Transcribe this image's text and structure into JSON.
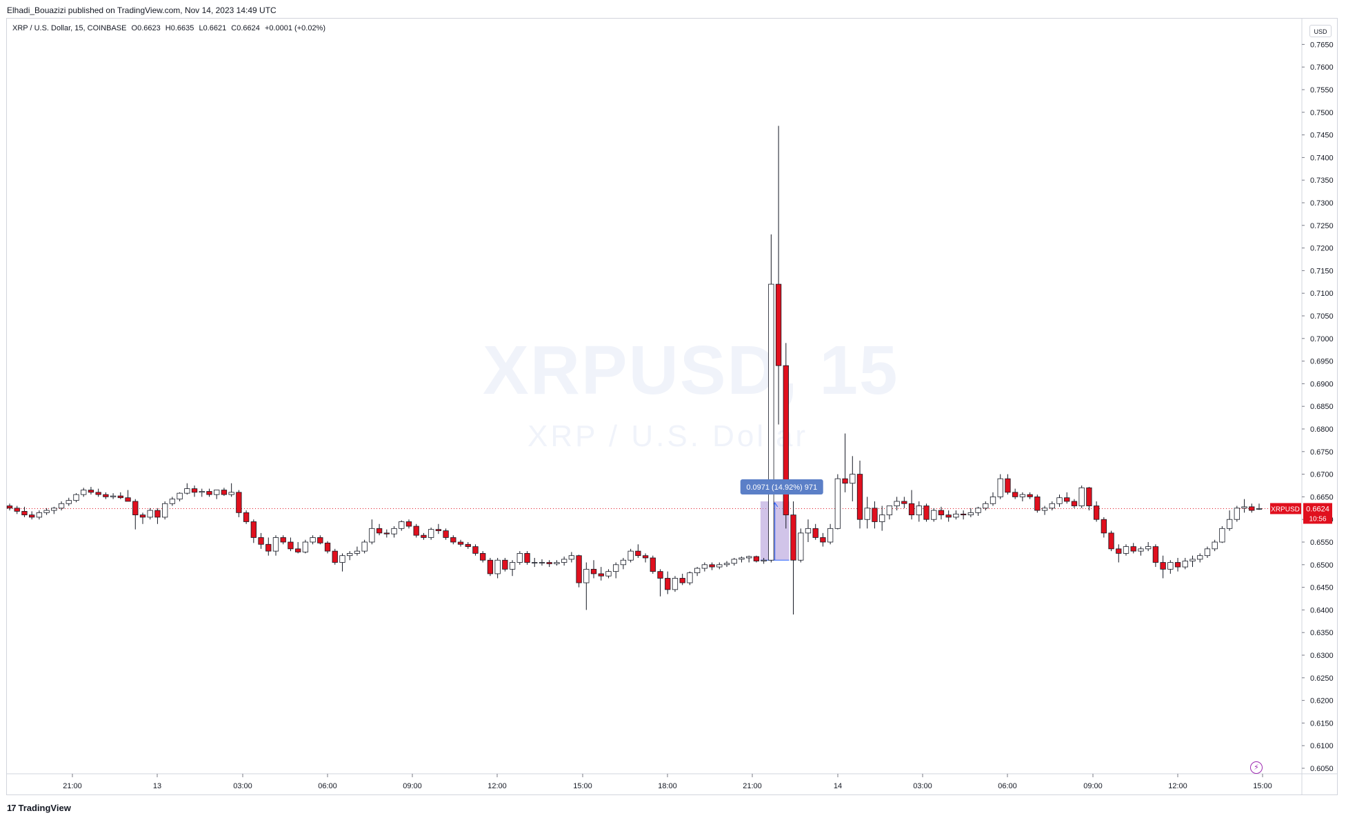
{
  "header": {
    "publisher_line": "Elhadi_Bouazizi published on TradingView.com, Nov 14, 2023 14:49 UTC"
  },
  "legend": {
    "symbol_desc": "XRP / U.S. Dollar, 15, COINBASE",
    "open": "O0.6623",
    "high": "H0.6635",
    "low": "L0.6621",
    "close": "C0.6624",
    "change": "+0.0001 (+0.02%)"
  },
  "watermark": {
    "main": "XRPUSD, 15",
    "sub": "XRP / U.S. Dollar"
  },
  "price_axis": {
    "currency": "USD"
  },
  "last_price": {
    "symbol": "XRPUSD",
    "value": "0.6624",
    "countdown": "10:56"
  },
  "measure_label": "0.0971 (14.92%) 971",
  "footer": {
    "brand": "TradingView"
  },
  "colors": {
    "up": "#ffffff",
    "down": "#e0101e",
    "wick": "#131722",
    "measure": "#b39ddb",
    "price_line": "#e0101e"
  },
  "chart_data": {
    "type": "candlestick",
    "title": "XRP / U.S. Dollar, 15, COINBASE",
    "y_ticks": [
      "0.7650",
      "0.7600",
      "0.7550",
      "0.7500",
      "0.7450",
      "0.7400",
      "0.7350",
      "0.7300",
      "0.7250",
      "0.7200",
      "0.7150",
      "0.7100",
      "0.7050",
      "0.7000",
      "0.6950",
      "0.6900",
      "0.6850",
      "0.6800",
      "0.6750",
      "0.6700",
      "0.6650",
      "0.6600",
      "0.6550",
      "0.6500",
      "0.6450",
      "0.6400",
      "0.6350",
      "0.6300",
      "0.6250",
      "0.6200",
      "0.6150",
      "0.6100",
      "0.6050"
    ],
    "x_ticks": [
      "21:00",
      "13",
      "03:00",
      "06:00",
      "09:00",
      "12:00",
      "15:00",
      "18:00",
      "21:00",
      "14",
      "03:00",
      "06:00",
      "09:00",
      "12:00",
      "15:00"
    ],
    "ylim": [
      0.6025,
      0.7695
    ],
    "candles": [
      [
        0.663,
        0.6635,
        0.662,
        0.6625
      ],
      [
        0.6625,
        0.663,
        0.6612,
        0.6618
      ],
      [
        0.6618,
        0.6628,
        0.6605,
        0.661
      ],
      [
        0.661,
        0.6618,
        0.66,
        0.6605
      ],
      [
        0.6605,
        0.662,
        0.66,
        0.6615
      ],
      [
        0.6615,
        0.6625,
        0.661,
        0.662
      ],
      [
        0.662,
        0.6628,
        0.6612,
        0.6625
      ],
      [
        0.6625,
        0.664,
        0.662,
        0.6635
      ],
      [
        0.6635,
        0.6648,
        0.663,
        0.6642
      ],
      [
        0.6642,
        0.6658,
        0.6638,
        0.6655
      ],
      [
        0.6655,
        0.667,
        0.665,
        0.6665
      ],
      [
        0.6665,
        0.6672,
        0.6655,
        0.666
      ],
      [
        0.666,
        0.6668,
        0.665,
        0.6655
      ],
      [
        0.6655,
        0.666,
        0.6645,
        0.665
      ],
      [
        0.665,
        0.6658,
        0.6645,
        0.6652
      ],
      [
        0.6652,
        0.666,
        0.6645,
        0.6648
      ],
      [
        0.6648,
        0.6665,
        0.664,
        0.664
      ],
      [
        0.664,
        0.6645,
        0.6578,
        0.661
      ],
      [
        0.661,
        0.6615,
        0.659,
        0.6605
      ],
      [
        0.6605,
        0.6625,
        0.66,
        0.662
      ],
      [
        0.662,
        0.6625,
        0.659,
        0.6605
      ],
      [
        0.6605,
        0.664,
        0.66,
        0.6635
      ],
      [
        0.6635,
        0.665,
        0.663,
        0.6645
      ],
      [
        0.6645,
        0.666,
        0.664,
        0.6658
      ],
      [
        0.6658,
        0.668,
        0.6655,
        0.6668
      ],
      [
        0.6668,
        0.6675,
        0.665,
        0.666
      ],
      [
        0.666,
        0.6668,
        0.665,
        0.6662
      ],
      [
        0.6662,
        0.6668,
        0.665,
        0.6655
      ],
      [
        0.6655,
        0.6665,
        0.6645,
        0.6665
      ],
      [
        0.6665,
        0.667,
        0.6652,
        0.6655
      ],
      [
        0.6655,
        0.668,
        0.665,
        0.666
      ],
      [
        0.666,
        0.6665,
        0.6605,
        0.6615
      ],
      [
        0.6615,
        0.662,
        0.659,
        0.6595
      ],
      [
        0.6595,
        0.66,
        0.6548,
        0.656
      ],
      [
        0.656,
        0.657,
        0.6535,
        0.6545
      ],
      [
        0.6545,
        0.656,
        0.652,
        0.653
      ],
      [
        0.653,
        0.6565,
        0.652,
        0.656
      ],
      [
        0.656,
        0.6565,
        0.6545,
        0.655
      ],
      [
        0.655,
        0.656,
        0.653,
        0.6535
      ],
      [
        0.6535,
        0.655,
        0.6525,
        0.6528
      ],
      [
        0.6528,
        0.6555,
        0.6525,
        0.655
      ],
      [
        0.655,
        0.6565,
        0.6545,
        0.656
      ],
      [
        0.656,
        0.6565,
        0.6545,
        0.6548
      ],
      [
        0.6548,
        0.6552,
        0.6525,
        0.653
      ],
      [
        0.653,
        0.6535,
        0.65,
        0.6505
      ],
      [
        0.6505,
        0.6525,
        0.6485,
        0.652
      ],
      [
        0.652,
        0.653,
        0.651,
        0.6525
      ],
      [
        0.6525,
        0.654,
        0.652,
        0.653
      ],
      [
        0.653,
        0.6555,
        0.6525,
        0.655
      ],
      [
        0.655,
        0.66,
        0.6545,
        0.658
      ],
      [
        0.658,
        0.659,
        0.6565,
        0.657
      ],
      [
        0.657,
        0.6578,
        0.656,
        0.6568
      ],
      [
        0.6568,
        0.6585,
        0.656,
        0.658
      ],
      [
        0.658,
        0.6598,
        0.6575,
        0.6595
      ],
      [
        0.6595,
        0.66,
        0.658,
        0.6585
      ],
      [
        0.6585,
        0.659,
        0.656,
        0.6565
      ],
      [
        0.6565,
        0.657,
        0.6555,
        0.656
      ],
      [
        0.656,
        0.6582,
        0.6555,
        0.6578
      ],
      [
        0.6578,
        0.659,
        0.6568,
        0.6575
      ],
      [
        0.6575,
        0.658,
        0.6555,
        0.656
      ],
      [
        0.656,
        0.6565,
        0.6545,
        0.655
      ],
      [
        0.655,
        0.6555,
        0.654,
        0.6545
      ],
      [
        0.6545,
        0.655,
        0.6535,
        0.654
      ],
      [
        0.654,
        0.6545,
        0.652,
        0.6525
      ],
      [
        0.6525,
        0.653,
        0.6505,
        0.651
      ],
      [
        0.651,
        0.6515,
        0.6475,
        0.648
      ],
      [
        0.648,
        0.6515,
        0.647,
        0.651
      ],
      [
        0.651,
        0.6515,
        0.6485,
        0.649
      ],
      [
        0.649,
        0.651,
        0.6475,
        0.6505
      ],
      [
        0.6505,
        0.653,
        0.65,
        0.6525
      ],
      [
        0.6525,
        0.653,
        0.65,
        0.6505
      ],
      [
        0.6505,
        0.6515,
        0.6495,
        0.6505
      ],
      [
        0.6505,
        0.6512,
        0.6498,
        0.6505
      ],
      [
        0.6505,
        0.651,
        0.6495,
        0.6502
      ],
      [
        0.6502,
        0.651,
        0.6498,
        0.6505
      ],
      [
        0.6505,
        0.6518,
        0.6498,
        0.6512
      ],
      [
        0.6512,
        0.6528,
        0.6505,
        0.652
      ],
      [
        0.652,
        0.6522,
        0.645,
        0.646
      ],
      [
        0.646,
        0.6505,
        0.64,
        0.649
      ],
      [
        0.649,
        0.651,
        0.647,
        0.648
      ],
      [
        0.648,
        0.6495,
        0.6465,
        0.6475
      ],
      [
        0.6475,
        0.649,
        0.647,
        0.6485
      ],
      [
        0.6485,
        0.6505,
        0.647,
        0.65
      ],
      [
        0.65,
        0.6515,
        0.649,
        0.651
      ],
      [
        0.651,
        0.6535,
        0.6505,
        0.653
      ],
      [
        0.653,
        0.6545,
        0.6515,
        0.652
      ],
      [
        0.652,
        0.6525,
        0.6505,
        0.6515
      ],
      [
        0.6515,
        0.652,
        0.648,
        0.6485
      ],
      [
        0.6485,
        0.649,
        0.643,
        0.647
      ],
      [
        0.647,
        0.6485,
        0.6435,
        0.6445
      ],
      [
        0.6445,
        0.6475,
        0.644,
        0.647
      ],
      [
        0.647,
        0.648,
        0.6455,
        0.646
      ],
      [
        0.646,
        0.6485,
        0.6455,
        0.6482
      ],
      [
        0.6482,
        0.6495,
        0.6475,
        0.6492
      ],
      [
        0.6492,
        0.6505,
        0.6485,
        0.65
      ],
      [
        0.65,
        0.6505,
        0.6488,
        0.6495
      ],
      [
        0.6495,
        0.6505,
        0.649,
        0.65
      ],
      [
        0.65,
        0.6508,
        0.6495,
        0.6503
      ],
      [
        0.6503,
        0.6515,
        0.6498,
        0.6512
      ],
      [
        0.6512,
        0.6518,
        0.6505,
        0.6515
      ],
      [
        0.6515,
        0.652,
        0.6505,
        0.6518
      ],
      [
        0.6518,
        0.652,
        0.6505,
        0.6508
      ],
      [
        0.6508,
        0.6515,
        0.6502,
        0.651
      ],
      [
        0.651,
        0.723,
        0.6505,
        0.712
      ],
      [
        0.712,
        0.747,
        0.681,
        0.694
      ],
      [
        0.694,
        0.699,
        0.658,
        0.661
      ],
      [
        0.661,
        0.664,
        0.639,
        0.651
      ],
      [
        0.651,
        0.658,
        0.6505,
        0.657
      ],
      [
        0.657,
        0.66,
        0.655,
        0.658
      ],
      [
        0.658,
        0.659,
        0.6555,
        0.656
      ],
      [
        0.656,
        0.657,
        0.654,
        0.655
      ],
      [
        0.655,
        0.659,
        0.6545,
        0.658
      ],
      [
        0.658,
        0.67,
        0.6578,
        0.669
      ],
      [
        0.669,
        0.679,
        0.666,
        0.668
      ],
      [
        0.668,
        0.674,
        0.664,
        0.67
      ],
      [
        0.67,
        0.673,
        0.658,
        0.66
      ],
      [
        0.66,
        0.665,
        0.658,
        0.6625
      ],
      [
        0.6625,
        0.664,
        0.658,
        0.6595
      ],
      [
        0.6595,
        0.663,
        0.6575,
        0.661
      ],
      [
        0.661,
        0.663,
        0.66,
        0.663
      ],
      [
        0.663,
        0.665,
        0.662,
        0.664
      ],
      [
        0.664,
        0.665,
        0.6625,
        0.6635
      ],
      [
        0.6635,
        0.6665,
        0.66,
        0.661
      ],
      [
        0.661,
        0.664,
        0.6595,
        0.663
      ],
      [
        0.663,
        0.6635,
        0.6595,
        0.66
      ],
      [
        0.66,
        0.6625,
        0.6595,
        0.662
      ],
      [
        0.662,
        0.6628,
        0.66,
        0.661
      ],
      [
        0.661,
        0.662,
        0.6595,
        0.6605
      ],
      [
        0.6605,
        0.662,
        0.66,
        0.6612
      ],
      [
        0.6612,
        0.662,
        0.66,
        0.661
      ],
      [
        0.661,
        0.6625,
        0.6605,
        0.6615
      ],
      [
        0.6615,
        0.6628,
        0.6608,
        0.6625
      ],
      [
        0.6625,
        0.664,
        0.662,
        0.6635
      ],
      [
        0.6635,
        0.666,
        0.663,
        0.665
      ],
      [
        0.665,
        0.67,
        0.6645,
        0.669
      ],
      [
        0.669,
        0.67,
        0.6655,
        0.666
      ],
      [
        0.666,
        0.6668,
        0.6645,
        0.665
      ],
      [
        0.665,
        0.666,
        0.664,
        0.6655
      ],
      [
        0.6655,
        0.666,
        0.6645,
        0.665
      ],
      [
        0.665,
        0.6655,
        0.6615,
        0.662
      ],
      [
        0.662,
        0.663,
        0.661,
        0.6625
      ],
      [
        0.6625,
        0.664,
        0.662,
        0.6635
      ],
      [
        0.6635,
        0.6655,
        0.6628,
        0.6648
      ],
      [
        0.6648,
        0.666,
        0.6635,
        0.664
      ],
      [
        0.664,
        0.6645,
        0.6625,
        0.663
      ],
      [
        0.663,
        0.6675,
        0.6625,
        0.667
      ],
      [
        0.667,
        0.6672,
        0.662,
        0.663
      ],
      [
        0.663,
        0.664,
        0.6595,
        0.66
      ],
      [
        0.66,
        0.6605,
        0.656,
        0.657
      ],
      [
        0.657,
        0.6575,
        0.653,
        0.6535
      ],
      [
        0.6535,
        0.6545,
        0.6505,
        0.6525
      ],
      [
        0.6525,
        0.6545,
        0.652,
        0.654
      ],
      [
        0.654,
        0.6548,
        0.6525,
        0.653
      ],
      [
        0.653,
        0.654,
        0.652,
        0.6535
      ],
      [
        0.6535,
        0.655,
        0.653,
        0.654
      ],
      [
        0.654,
        0.6545,
        0.6495,
        0.6505
      ],
      [
        0.6505,
        0.652,
        0.647,
        0.649
      ],
      [
        0.649,
        0.651,
        0.648,
        0.6505
      ],
      [
        0.6505,
        0.6515,
        0.6485,
        0.6495
      ],
      [
        0.6495,
        0.6515,
        0.649,
        0.6508
      ],
      [
        0.6508,
        0.652,
        0.6495,
        0.6512
      ],
      [
        0.6512,
        0.6525,
        0.6505,
        0.652
      ],
      [
        0.652,
        0.654,
        0.6515,
        0.6535
      ],
      [
        0.6535,
        0.6555,
        0.653,
        0.655
      ],
      [
        0.655,
        0.6585,
        0.6548,
        0.658
      ],
      [
        0.658,
        0.662,
        0.6575,
        0.66
      ],
      [
        0.66,
        0.663,
        0.6595,
        0.6625
      ],
      [
        0.6625,
        0.6645,
        0.6615,
        0.6628
      ],
      [
        0.6628,
        0.6635,
        0.6615,
        0.662
      ],
      [
        0.6623,
        0.6635,
        0.6621,
        0.6624
      ]
    ]
  }
}
